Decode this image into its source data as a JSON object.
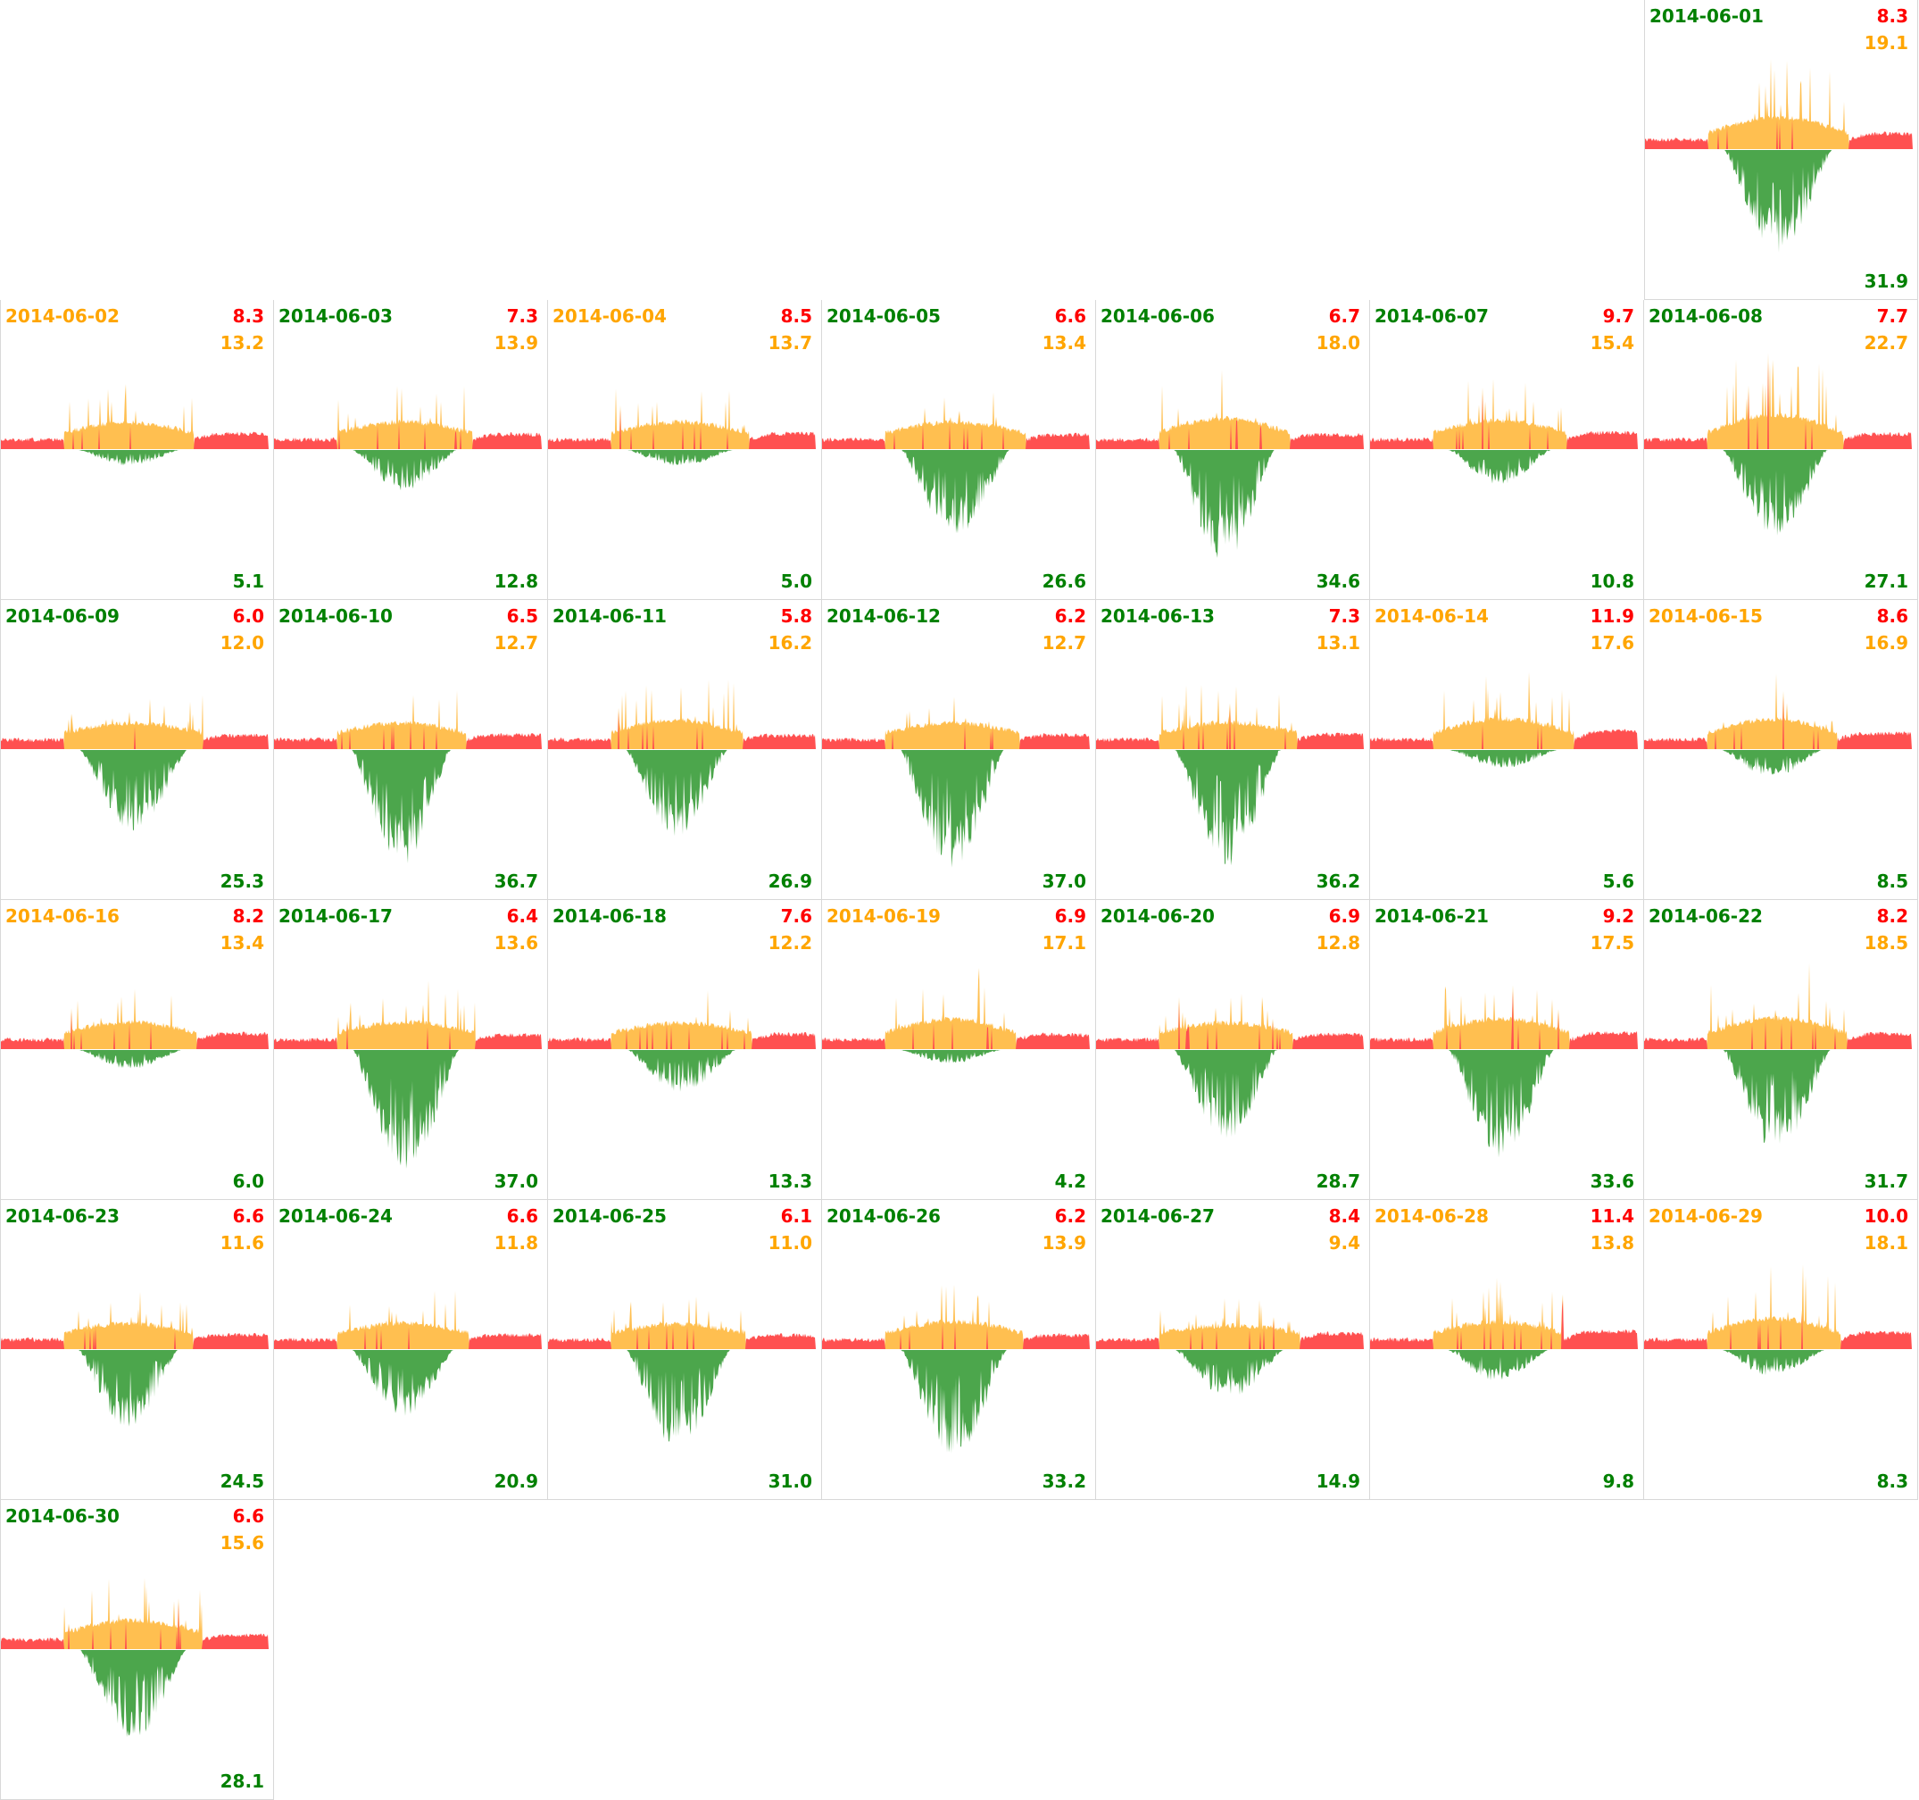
{
  "chart_data": {
    "type": "area",
    "title": "",
    "legend_colors": {
      "grid_import": "#ff5050",
      "self_consumed": "#ffbf50",
      "export": "#4ca64c"
    },
    "label_colors": {
      "green": "#008000",
      "orange": "#ffa500",
      "red": "#ff0000"
    },
    "days": [
      {
        "date": "2014-06-01",
        "date_color": "green",
        "red": "8.3",
        "orange": "19.1",
        "green": "31.9"
      },
      {
        "date": "2014-06-02",
        "date_color": "orange",
        "red": "8.3",
        "orange": "13.2",
        "green": "5.1"
      },
      {
        "date": "2014-06-03",
        "date_color": "green",
        "red": "7.3",
        "orange": "13.9",
        "green": "12.8"
      },
      {
        "date": "2014-06-04",
        "date_color": "orange",
        "red": "8.5",
        "orange": "13.7",
        "green": "5.0"
      },
      {
        "date": "2014-06-05",
        "date_color": "green",
        "red": "6.6",
        "orange": "13.4",
        "green": "26.6"
      },
      {
        "date": "2014-06-06",
        "date_color": "green",
        "red": "6.7",
        "orange": "18.0",
        "green": "34.6"
      },
      {
        "date": "2014-06-07",
        "date_color": "green",
        "red": "9.7",
        "orange": "15.4",
        "green": "10.8"
      },
      {
        "date": "2014-06-08",
        "date_color": "green",
        "red": "7.7",
        "orange": "22.7",
        "green": "27.1"
      },
      {
        "date": "2014-06-09",
        "date_color": "green",
        "red": "6.0",
        "orange": "12.0",
        "green": "25.3"
      },
      {
        "date": "2014-06-10",
        "date_color": "green",
        "red": "6.5",
        "orange": "12.7",
        "green": "36.7"
      },
      {
        "date": "2014-06-11",
        "date_color": "green",
        "red": "5.8",
        "orange": "16.2",
        "green": "26.9"
      },
      {
        "date": "2014-06-12",
        "date_color": "green",
        "red": "6.2",
        "orange": "12.7",
        "green": "37.0"
      },
      {
        "date": "2014-06-13",
        "date_color": "green",
        "red": "7.3",
        "orange": "13.1",
        "green": "36.2"
      },
      {
        "date": "2014-06-14",
        "date_color": "orange",
        "red": "11.9",
        "orange": "17.6",
        "green": "5.6"
      },
      {
        "date": "2014-06-15",
        "date_color": "orange",
        "red": "8.6",
        "orange": "16.9",
        "green": "8.5"
      },
      {
        "date": "2014-06-16",
        "date_color": "orange",
        "red": "8.2",
        "orange": "13.4",
        "green": "6.0"
      },
      {
        "date": "2014-06-17",
        "date_color": "green",
        "red": "6.4",
        "orange": "13.6",
        "green": "37.0"
      },
      {
        "date": "2014-06-18",
        "date_color": "green",
        "red": "7.6",
        "orange": "12.2",
        "green": "13.3"
      },
      {
        "date": "2014-06-19",
        "date_color": "orange",
        "red": "6.9",
        "orange": "17.1",
        "green": "4.2"
      },
      {
        "date": "2014-06-20",
        "date_color": "green",
        "red": "6.9",
        "orange": "12.8",
        "green": "28.7"
      },
      {
        "date": "2014-06-21",
        "date_color": "green",
        "red": "9.2",
        "orange": "17.5",
        "green": "33.6"
      },
      {
        "date": "2014-06-22",
        "date_color": "green",
        "red": "8.2",
        "orange": "18.5",
        "green": "31.7"
      },
      {
        "date": "2014-06-23",
        "date_color": "green",
        "red": "6.6",
        "orange": "11.6",
        "green": "24.5"
      },
      {
        "date": "2014-06-24",
        "date_color": "green",
        "red": "6.6",
        "orange": "11.8",
        "green": "20.9"
      },
      {
        "date": "2014-06-25",
        "date_color": "green",
        "red": "6.1",
        "orange": "11.0",
        "green": "31.0"
      },
      {
        "date": "2014-06-26",
        "date_color": "green",
        "red": "6.2",
        "orange": "13.9",
        "green": "33.2"
      },
      {
        "date": "2014-06-27",
        "date_color": "green",
        "red": "8.4",
        "orange": "9.4",
        "green": "14.9"
      },
      {
        "date": "2014-06-28",
        "date_color": "orange",
        "red": "11.4",
        "orange": "13.8",
        "green": "9.8"
      },
      {
        "date": "2014-06-29",
        "date_color": "orange",
        "red": "10.0",
        "orange": "18.1",
        "green": "8.3"
      },
      {
        "date": "2014-06-30",
        "date_color": "green",
        "red": "6.6",
        "orange": "15.6",
        "green": "28.1"
      }
    ]
  }
}
